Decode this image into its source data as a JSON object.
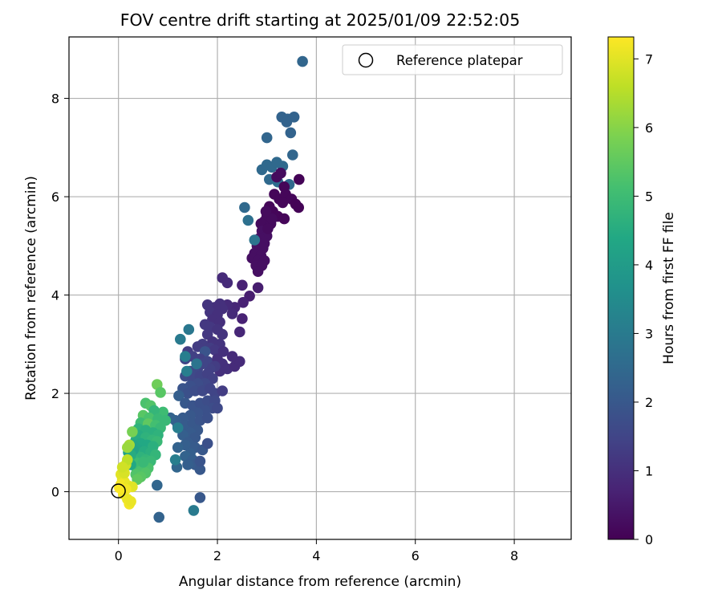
{
  "chart_data": {
    "type": "scatter",
    "title": "FOV centre drift starting at 2025/01/09 22:52:05",
    "xlabel": "Angular distance from reference (arcmin)",
    "ylabel": "Rotation from reference (arcmin)",
    "xlim": [
      -1.0,
      9.15
    ],
    "ylim": [
      -0.97,
      9.25
    ],
    "xticks": [
      0,
      2,
      4,
      6,
      8
    ],
    "yticks": [
      0,
      2,
      4,
      6,
      8
    ],
    "grid": true,
    "legend": {
      "location": "top-right",
      "entries": [
        "Reference platepar"
      ]
    },
    "reference_point": {
      "x": 0,
      "y": 0,
      "marker": "open-circle"
    },
    "colorbar": {
      "label": "Hours from first FF file",
      "colormap": "viridis",
      "range": [
        0,
        7.32
      ],
      "ticks": [
        0,
        1,
        2,
        3,
        4,
        5,
        6,
        7
      ]
    },
    "points": [
      [
        3.72,
        8.75,
        2.4
      ],
      [
        3.3,
        7.62,
        2.3
      ],
      [
        3.42,
        7.58,
        2.3
      ],
      [
        3.55,
        7.62,
        2.3
      ],
      [
        3.4,
        7.52,
        2.3
      ],
      [
        3.48,
        7.3,
        2.3
      ],
      [
        3.0,
        7.2,
        2.4
      ],
      [
        3.52,
        6.85,
        2.4
      ],
      [
        2.9,
        6.55,
        2.5
      ],
      [
        3.0,
        6.65,
        2.5
      ],
      [
        3.1,
        6.6,
        2.5
      ],
      [
        3.2,
        6.7,
        2.5
      ],
      [
        3.32,
        6.62,
        2.5
      ],
      [
        3.05,
        6.35,
        2.5
      ],
      [
        3.22,
        6.3,
        2.6
      ],
      [
        3.45,
        6.25,
        2.5
      ],
      [
        3.65,
        6.35,
        0.05
      ],
      [
        3.2,
        6.4,
        0.2
      ],
      [
        3.28,
        6.48,
        0.2
      ],
      [
        3.35,
        6.2,
        0.1
      ],
      [
        3.15,
        6.05,
        0.1
      ],
      [
        3.25,
        5.95,
        0.1
      ],
      [
        3.38,
        6.05,
        0.1
      ],
      [
        3.5,
        5.95,
        0.1
      ],
      [
        3.58,
        5.85,
        0.05
      ],
      [
        3.64,
        5.78,
        0.05
      ],
      [
        3.32,
        5.88,
        0.1
      ],
      [
        3.05,
        5.8,
        0.1
      ],
      [
        3.12,
        5.7,
        0.1
      ],
      [
        3.22,
        5.6,
        0.1
      ],
      [
        3.35,
        5.55,
        0.1
      ],
      [
        3.0,
        5.6,
        0.2
      ],
      [
        2.95,
        5.5,
        0.2
      ],
      [
        2.88,
        5.45,
        0.2
      ],
      [
        3.08,
        5.45,
        0.2
      ],
      [
        2.9,
        5.3,
        0.3
      ],
      [
        3.0,
        5.2,
        0.3
      ],
      [
        2.85,
        5.15,
        0.3
      ],
      [
        2.95,
        5.05,
        0.3
      ],
      [
        2.8,
        5.0,
        0.3
      ],
      [
        2.92,
        4.95,
        0.3
      ],
      [
        2.75,
        4.85,
        0.3
      ],
      [
        2.88,
        4.8,
        0.3
      ],
      [
        2.7,
        4.75,
        0.3
      ],
      [
        2.82,
        4.7,
        0.3
      ],
      [
        2.95,
        4.7,
        0.3
      ],
      [
        2.78,
        4.6,
        0.3
      ],
      [
        2.9,
        4.6,
        0.3
      ],
      [
        2.82,
        4.48,
        0.3
      ],
      [
        3.02,
        5.35,
        0.2
      ],
      [
        3.1,
        5.55,
        0.2
      ],
      [
        2.98,
        5.7,
        0.2
      ],
      [
        2.55,
        5.78,
        2.5
      ],
      [
        2.62,
        5.52,
        2.7
      ],
      [
        2.75,
        5.12,
        2.8
      ],
      [
        2.1,
        4.35,
        0.9
      ],
      [
        2.2,
        4.25,
        0.9
      ],
      [
        2.5,
        4.2,
        0.7
      ],
      [
        2.82,
        4.15,
        0.6
      ],
      [
        2.65,
        3.98,
        0.6
      ],
      [
        2.52,
        3.85,
        0.7
      ],
      [
        2.35,
        3.75,
        0.8
      ],
      [
        2.2,
        3.8,
        0.9
      ],
      [
        2.3,
        3.62,
        0.9
      ],
      [
        2.5,
        3.52,
        0.7
      ],
      [
        2.45,
        3.25,
        0.8
      ],
      [
        2.05,
        3.82,
        1.0
      ],
      [
        2.1,
        3.72,
        1.0
      ],
      [
        1.95,
        3.75,
        1.0
      ],
      [
        1.8,
        3.8,
        1.1
      ],
      [
        1.85,
        3.65,
        1.1
      ],
      [
        2.0,
        3.6,
        1.0
      ],
      [
        1.9,
        3.5,
        1.0
      ],
      [
        2.05,
        3.45,
        1.0
      ],
      [
        1.75,
        3.4,
        1.2
      ],
      [
        1.85,
        3.35,
        1.2
      ],
      [
        2.0,
        3.3,
        1.1
      ],
      [
        1.8,
        3.2,
        1.2
      ],
      [
        2.1,
        3.2,
        1.1
      ],
      [
        1.9,
        3.05,
        1.1
      ],
      [
        2.05,
        3.0,
        1.1
      ],
      [
        1.7,
        3.0,
        1.3
      ],
      [
        1.85,
        2.92,
        1.3
      ],
      [
        1.95,
        2.88,
        1.2
      ],
      [
        1.6,
        2.95,
        1.3
      ],
      [
        1.75,
        2.85,
        1.9
      ],
      [
        1.4,
        2.85,
        1.3
      ],
      [
        1.35,
        2.7,
        1.5
      ],
      [
        1.5,
        2.75,
        1.4
      ],
      [
        1.65,
        2.7,
        1.4
      ],
      [
        1.8,
        2.65,
        1.5
      ],
      [
        2.0,
        2.7,
        1.0
      ],
      [
        2.1,
        2.6,
        1.0
      ],
      [
        2.2,
        2.5,
        1.0
      ],
      [
        2.05,
        2.45,
        1.0
      ],
      [
        1.95,
        2.55,
        1.3
      ],
      [
        1.85,
        2.5,
        1.4
      ],
      [
        1.7,
        2.6,
        1.5
      ],
      [
        1.6,
        2.5,
        1.5
      ],
      [
        1.55,
        2.4,
        1.6
      ],
      [
        1.45,
        2.45,
        1.6
      ],
      [
        1.35,
        2.35,
        1.7
      ],
      [
        1.5,
        2.3,
        1.6
      ],
      [
        1.65,
        2.35,
        1.5
      ],
      [
        1.8,
        2.4,
        1.4
      ],
      [
        1.9,
        2.3,
        1.4
      ],
      [
        1.75,
        2.2,
        1.6
      ],
      [
        1.6,
        2.2,
        1.7
      ],
      [
        1.45,
        2.15,
        1.8
      ],
      [
        1.3,
        2.1,
        1.9
      ],
      [
        1.4,
        2.0,
        1.8
      ],
      [
        1.55,
        2.05,
        1.7
      ],
      [
        1.7,
        2.05,
        1.6
      ],
      [
        1.85,
        2.1,
        1.5
      ],
      [
        1.95,
        2.0,
        1.5
      ],
      [
        2.1,
        2.05,
        1.3
      ],
      [
        2.35,
        2.55,
        0.9
      ],
      [
        2.45,
        2.65,
        0.9
      ],
      [
        2.3,
        2.75,
        0.9
      ],
      [
        2.12,
        2.85,
        1.0
      ],
      [
        1.25,
        3.1,
        3.0
      ],
      [
        1.42,
        3.3,
        2.9
      ],
      [
        1.35,
        2.75,
        3.1
      ],
      [
        1.38,
        2.45,
        3.1
      ],
      [
        1.58,
        2.6,
        2.8
      ],
      [
        1.22,
        1.95,
        2.2
      ],
      [
        1.35,
        1.8,
        2.0
      ],
      [
        1.5,
        1.75,
        1.9
      ],
      [
        1.65,
        1.8,
        1.8
      ],
      [
        1.8,
        1.85,
        1.7
      ],
      [
        1.95,
        1.85,
        1.6
      ],
      [
        1.9,
        1.7,
        1.7
      ],
      [
        1.75,
        1.65,
        1.8
      ],
      [
        1.6,
        1.6,
        1.9
      ],
      [
        1.45,
        1.55,
        2.0
      ],
      [
        1.3,
        1.5,
        2.1
      ],
      [
        1.15,
        1.45,
        2.2
      ],
      [
        1.05,
        1.5,
        2.3
      ],
      [
        1.2,
        1.35,
        2.2
      ],
      [
        1.35,
        1.35,
        2.1
      ],
      [
        1.5,
        1.4,
        2.0
      ],
      [
        1.65,
        1.45,
        1.9
      ],
      [
        1.8,
        1.5,
        1.8
      ],
      [
        2.0,
        1.7,
        1.6
      ],
      [
        1.6,
        1.25,
        2.0
      ],
      [
        1.45,
        1.2,
        2.1
      ],
      [
        1.3,
        1.15,
        2.2
      ],
      [
        1.2,
        1.3,
        3.1
      ],
      [
        1.55,
        1.1,
        2.0
      ],
      [
        1.4,
        1.0,
        2.1
      ],
      [
        1.35,
        0.95,
        2.2
      ],
      [
        1.55,
        0.9,
        2.1
      ],
      [
        1.7,
        0.85,
        2.0
      ],
      [
        1.45,
        0.78,
        2.2
      ],
      [
        1.35,
        0.72,
        2.3
      ],
      [
        1.5,
        0.65,
        2.2
      ],
      [
        1.55,
        0.55,
        2.1
      ],
      [
        1.65,
        0.45,
        2.0
      ],
      [
        1.8,
        0.98,
        1.8
      ],
      [
        1.18,
        0.5,
        2.4
      ],
      [
        1.65,
        0.62,
        1.9
      ],
      [
        1.15,
        0.65,
        3.1
      ],
      [
        1.4,
        0.55,
        2.2
      ],
      [
        1.2,
        0.9,
        2.3
      ],
      [
        0.78,
        0.13,
        2.4
      ],
      [
        0.82,
        -0.52,
        2.3
      ],
      [
        1.52,
        -0.38,
        3.0
      ],
      [
        1.65,
        -0.12,
        2.0
      ],
      [
        0.78,
        2.18,
        5.7
      ],
      [
        0.85,
        2.02,
        5.4
      ],
      [
        0.55,
        1.8,
        5.2
      ],
      [
        0.65,
        1.75,
        5.3
      ],
      [
        0.9,
        1.62,
        5.0
      ],
      [
        0.72,
        1.65,
        4.8
      ],
      [
        0.5,
        1.55,
        5.4
      ],
      [
        0.62,
        1.5,
        5.2
      ],
      [
        0.8,
        1.48,
        4.9
      ],
      [
        0.95,
        1.45,
        4.9
      ],
      [
        0.45,
        1.4,
        5.0
      ],
      [
        0.6,
        1.38,
        5.5
      ],
      [
        0.75,
        1.35,
        5.1
      ],
      [
        0.85,
        1.3,
        4.9
      ],
      [
        0.4,
        1.28,
        4.7
      ],
      [
        0.55,
        1.25,
        4.6
      ],
      [
        0.7,
        1.2,
        4.6
      ],
      [
        0.8,
        1.15,
        4.7
      ],
      [
        0.4,
        1.15,
        4.5
      ],
      [
        0.55,
        1.1,
        4.7
      ],
      [
        0.68,
        1.05,
        4.8
      ],
      [
        0.78,
        1.02,
        4.9
      ],
      [
        0.35,
        1.05,
        4.5
      ],
      [
        0.45,
        0.98,
        4.4
      ],
      [
        0.58,
        0.95,
        4.4
      ],
      [
        0.7,
        0.92,
        4.6
      ],
      [
        0.3,
        0.95,
        4.3
      ],
      [
        0.4,
        0.85,
        4.3
      ],
      [
        0.52,
        0.82,
        4.5
      ],
      [
        0.65,
        0.8,
        4.6
      ],
      [
        0.75,
        0.75,
        4.8
      ],
      [
        0.35,
        0.75,
        4.6
      ],
      [
        0.45,
        0.7,
        4.7
      ],
      [
        0.55,
        0.65,
        4.8
      ],
      [
        0.65,
        0.62,
        4.9
      ],
      [
        0.3,
        0.65,
        4.8
      ],
      [
        0.4,
        0.58,
        5.0
      ],
      [
        0.5,
        0.52,
        5.1
      ],
      [
        0.6,
        0.48,
        5.2
      ],
      [
        0.35,
        0.5,
        5.0
      ],
      [
        0.45,
        0.42,
        5.2
      ],
      [
        0.55,
        0.38,
        5.3
      ],
      [
        0.35,
        0.35,
        5.3
      ],
      [
        0.45,
        0.3,
        5.4
      ],
      [
        0.38,
        0.25,
        5.5
      ],
      [
        0.5,
        0.6,
        4.9
      ],
      [
        0.25,
        0.55,
        4.4
      ],
      [
        0.3,
        0.85,
        4.2
      ],
      [
        0.2,
        0.8,
        4.1
      ],
      [
        0.25,
        0.75,
        4.5
      ],
      [
        0.28,
        1.22,
        5.8
      ],
      [
        0.22,
        0.95,
        6.3
      ],
      [
        0.18,
        0.9,
        6.2
      ],
      [
        0.05,
        0.35,
        7.0
      ],
      [
        0.1,
        0.45,
        6.9
      ],
      [
        0.15,
        0.55,
        6.8
      ],
      [
        0.18,
        0.65,
        6.6
      ],
      [
        0.08,
        0.25,
        7.0
      ],
      [
        0.12,
        0.2,
        7.1
      ],
      [
        0.05,
        0.15,
        7.2
      ],
      [
        0.2,
        0.12,
        7.1
      ],
      [
        0.28,
        0.1,
        7.0
      ],
      [
        0.15,
        0.05,
        7.2
      ],
      [
        0.1,
        -0.05,
        7.2
      ],
      [
        0.18,
        -0.15,
        7.1
      ],
      [
        0.22,
        -0.25,
        7.2
      ],
      [
        0.25,
        -0.2,
        7.1
      ],
      [
        0.02,
        0.08,
        7.3
      ],
      [
        0.12,
        0.38,
        6.9
      ],
      [
        0.08,
        0.5,
        6.8
      ]
    ]
  }
}
